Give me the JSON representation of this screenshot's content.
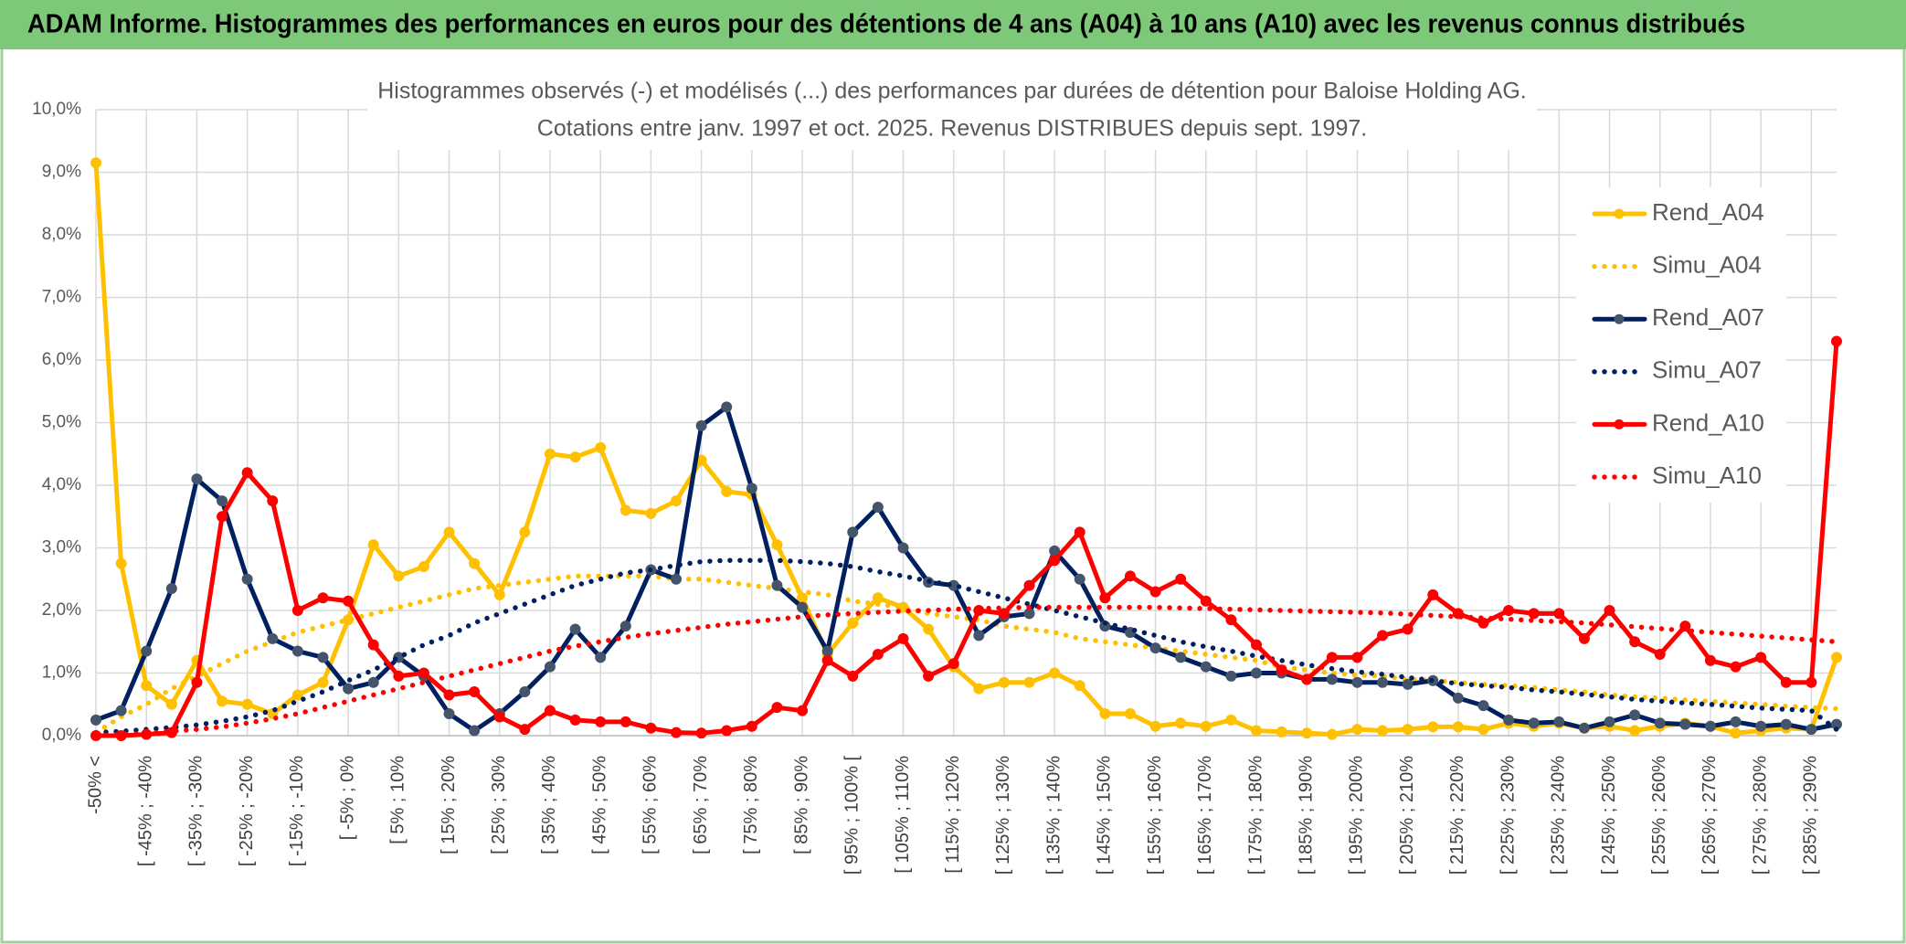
{
  "header": {
    "title": "ADAM Informe. Histogrammes des performances en euros pour des détentions de 4 ans (A04) à 10 ans (A10) avec les revenus connus distribués"
  },
  "chart_data": {
    "type": "line",
    "title": [
      "Histogrammes observés (-) et modélisés (...) des performances par durées de détention pour Baloise Holding AG.",
      "Cotations entre janv. 1997 et oct. 2025. Revenus DISTRIBUES depuis sept. 1997."
    ],
    "categories": [
      "-50% <",
      null,
      "[ -45% ; -40%",
      null,
      "[ -35% ; -30%",
      null,
      "[ -25% ; -20%",
      null,
      "[ -15% ; -10%",
      null,
      "[ -5% ; 0%",
      null,
      "[ 5% ; 10%",
      null,
      "[ 15% ; 20%",
      null,
      "[ 25% ; 30%",
      null,
      "[ 35% ; 40%",
      null,
      "[ 45% ; 50%",
      null,
      "[ 55% ; 60%",
      null,
      "[ 65% ; 70%",
      null,
      "[ 75% ; 80%",
      null,
      "[ 85% ; 90%",
      null,
      "[ 95% ; 100% [",
      null,
      "[ 105% ; 110%",
      null,
      "[ 115% ; 120%",
      null,
      "[ 125% ; 130%",
      null,
      "[ 135% ; 140%",
      null,
      "[ 145% ; 150%",
      null,
      "[ 155% ; 160%",
      null,
      "[ 165% ; 170%",
      null,
      "[ 175% ; 180%",
      null,
      "[ 185% ; 190%",
      null,
      "[ 195% ; 200%",
      null,
      "[ 205% ; 210%",
      null,
      "[ 215% ; 220%",
      null,
      "[ 225% ; 230%",
      null,
      "[ 235% ; 240%",
      null,
      "[ 245% ; 250%",
      null,
      "[ 255% ; 260%",
      null,
      "[ 265% ; 270%",
      null,
      "[ 275% ; 280%",
      null,
      "[ 285% ; 290%",
      null
    ],
    "series": [
      {
        "name": "Rend_A04",
        "color": "#ffc000",
        "line_style": "solid",
        "marker_color": "#ffc000",
        "values": [
          9.15,
          2.75,
          0.8,
          0.5,
          1.2,
          0.55,
          0.5,
          0.35,
          0.65,
          0.85,
          1.85,
          3.05,
          2.55,
          2.7,
          3.25,
          2.75,
          2.25,
          3.25,
          4.5,
          4.45,
          4.6,
          3.6,
          3.55,
          3.75,
          4.4,
          3.9,
          3.85,
          3.05,
          2.2,
          1.3,
          1.8,
          2.2,
          2.05,
          1.7,
          1.1,
          0.75,
          0.85,
          0.85,
          1.0,
          0.8,
          0.35,
          0.35,
          0.15,
          0.2,
          0.15,
          0.25,
          0.08,
          0.06,
          0.04,
          0.02,
          0.1,
          0.08,
          0.1,
          0.14,
          0.14,
          0.1,
          0.2,
          0.15,
          0.2,
          0.12,
          0.15,
          0.08,
          0.15,
          0.2,
          0.15,
          0.04,
          0.08,
          0.12,
          0.1,
          1.25
        ]
      },
      {
        "name": "Simu_A04",
        "color": "#ffc000",
        "line_style": "dotted",
        "values": [
          0.05,
          0.3,
          0.5,
          0.75,
          0.95,
          1.15,
          1.35,
          1.5,
          1.65,
          1.75,
          1.85,
          1.95,
          2.05,
          2.15,
          2.25,
          2.35,
          2.4,
          2.45,
          2.5,
          2.55,
          2.55,
          2.55,
          2.55,
          2.5,
          2.5,
          2.45,
          2.4,
          2.35,
          2.3,
          2.25,
          2.15,
          2.1,
          2.05,
          1.95,
          1.9,
          1.85,
          1.75,
          1.7,
          1.65,
          1.55,
          1.5,
          1.45,
          1.4,
          1.35,
          1.3,
          1.25,
          1.2,
          1.1,
          1.05,
          1.0,
          0.97,
          0.95,
          0.9,
          0.88,
          0.85,
          0.82,
          0.8,
          0.77,
          0.73,
          0.7,
          0.65,
          0.62,
          0.6,
          0.57,
          0.55,
          0.52,
          0.5,
          0.47,
          0.45,
          0.43
        ]
      },
      {
        "name": "Rend_A07",
        "color": "#002060",
        "line_style": "solid",
        "marker_color": "#44546a",
        "values": [
          0.25,
          0.4,
          1.35,
          2.35,
          4.1,
          3.75,
          2.5,
          1.55,
          1.35,
          1.25,
          0.75,
          0.85,
          1.25,
          0.95,
          0.35,
          0.08,
          0.35,
          0.7,
          1.1,
          1.7,
          1.25,
          1.75,
          2.65,
          2.5,
          4.95,
          5.25,
          3.95,
          2.4,
          2.05,
          1.35,
          3.25,
          3.65,
          3.0,
          2.45,
          2.4,
          1.6,
          1.9,
          1.95,
          2.95,
          2.5,
          1.75,
          1.65,
          1.4,
          1.25,
          1.1,
          0.95,
          1.0,
          1.0,
          0.9,
          0.9,
          0.85,
          0.85,
          0.82,
          0.88,
          0.6,
          0.48,
          0.25,
          0.2,
          0.22,
          0.12,
          0.22,
          0.33,
          0.2,
          0.18,
          0.15,
          0.22,
          0.15,
          0.18,
          0.1,
          0.18
        ]
      },
      {
        "name": "Simu_A07",
        "color": "#002060",
        "line_style": "dotted",
        "values": [
          0.05,
          0.07,
          0.1,
          0.13,
          0.17,
          0.23,
          0.3,
          0.4,
          0.55,
          0.7,
          0.88,
          1.05,
          1.25,
          1.45,
          1.6,
          1.8,
          1.95,
          2.1,
          2.25,
          2.4,
          2.5,
          2.6,
          2.65,
          2.72,
          2.78,
          2.8,
          2.8,
          2.8,
          2.78,
          2.75,
          2.7,
          2.62,
          2.55,
          2.47,
          2.4,
          2.3,
          2.2,
          2.1,
          2.0,
          1.9,
          1.8,
          1.7,
          1.6,
          1.5,
          1.42,
          1.35,
          1.27,
          1.2,
          1.13,
          1.07,
          1.02,
          0.98,
          0.93,
          0.88,
          0.83,
          0.8,
          0.77,
          0.73,
          0.7,
          0.66,
          0.62,
          0.58,
          0.55,
          0.52,
          0.5,
          0.47,
          0.44,
          0.42,
          0.4,
          0.1
        ]
      },
      {
        "name": "Rend_A10",
        "color": "#ff0000",
        "line_style": "solid",
        "marker_color": "#ff0000",
        "values": [
          0.0,
          0.0,
          0.02,
          0.05,
          0.85,
          3.5,
          4.2,
          3.75,
          2.0,
          2.2,
          2.15,
          1.45,
          0.95,
          1.0,
          0.65,
          0.7,
          0.3,
          0.1,
          0.4,
          0.25,
          0.22,
          0.22,
          0.12,
          0.05,
          0.04,
          0.08,
          0.15,
          0.45,
          0.4,
          1.2,
          0.95,
          1.3,
          1.55,
          0.95,
          1.15,
          2.0,
          1.95,
          2.4,
          2.8,
          3.25,
          2.2,
          2.55,
          2.3,
          2.5,
          2.15,
          1.85,
          1.45,
          1.05,
          0.9,
          1.25,
          1.25,
          1.6,
          1.7,
          2.25,
          1.95,
          1.8,
          2.0,
          1.95,
          1.95,
          1.55,
          2.0,
          1.5,
          1.3,
          1.75,
          1.2,
          1.1,
          1.25,
          0.85,
          0.85,
          6.3
        ]
      },
      {
        "name": "Simu_A10",
        "color": "#ff0000",
        "line_style": "dotted",
        "values": [
          0.0,
          0.02,
          0.04,
          0.07,
          0.1,
          0.14,
          0.2,
          0.27,
          0.35,
          0.45,
          0.55,
          0.65,
          0.75,
          0.85,
          0.95,
          1.05,
          1.15,
          1.25,
          1.35,
          1.43,
          1.5,
          1.57,
          1.63,
          1.68,
          1.73,
          1.78,
          1.82,
          1.86,
          1.9,
          1.93,
          1.95,
          1.97,
          1.99,
          2.0,
          2.02,
          2.03,
          2.04,
          2.05,
          2.05,
          2.05,
          2.05,
          2.05,
          2.05,
          2.04,
          2.03,
          2.02,
          2.01,
          2.0,
          1.99,
          1.98,
          1.97,
          1.96,
          1.94,
          1.92,
          1.9,
          1.88,
          1.86,
          1.84,
          1.82,
          1.8,
          1.77,
          1.74,
          1.71,
          1.68,
          1.65,
          1.62,
          1.59,
          1.56,
          1.53,
          1.5
        ]
      }
    ],
    "ylim": [
      0,
      10
    ],
    "yticks": [
      {
        "value": 0,
        "label": "0,0%"
      },
      {
        "value": 1,
        "label": "1,0%"
      },
      {
        "value": 2,
        "label": "2,0%"
      },
      {
        "value": 3,
        "label": "3,0%"
      },
      {
        "value": 4,
        "label": "4,0%"
      },
      {
        "value": 5,
        "label": "5,0%"
      },
      {
        "value": 6,
        "label": "6,0%"
      },
      {
        "value": 7,
        "label": "7,0%"
      },
      {
        "value": 8,
        "label": "8,0%"
      },
      {
        "value": 9,
        "label": "9,0%"
      },
      {
        "value": 10,
        "label": "10,0%"
      }
    ],
    "grid": true,
    "legend": "right"
  }
}
